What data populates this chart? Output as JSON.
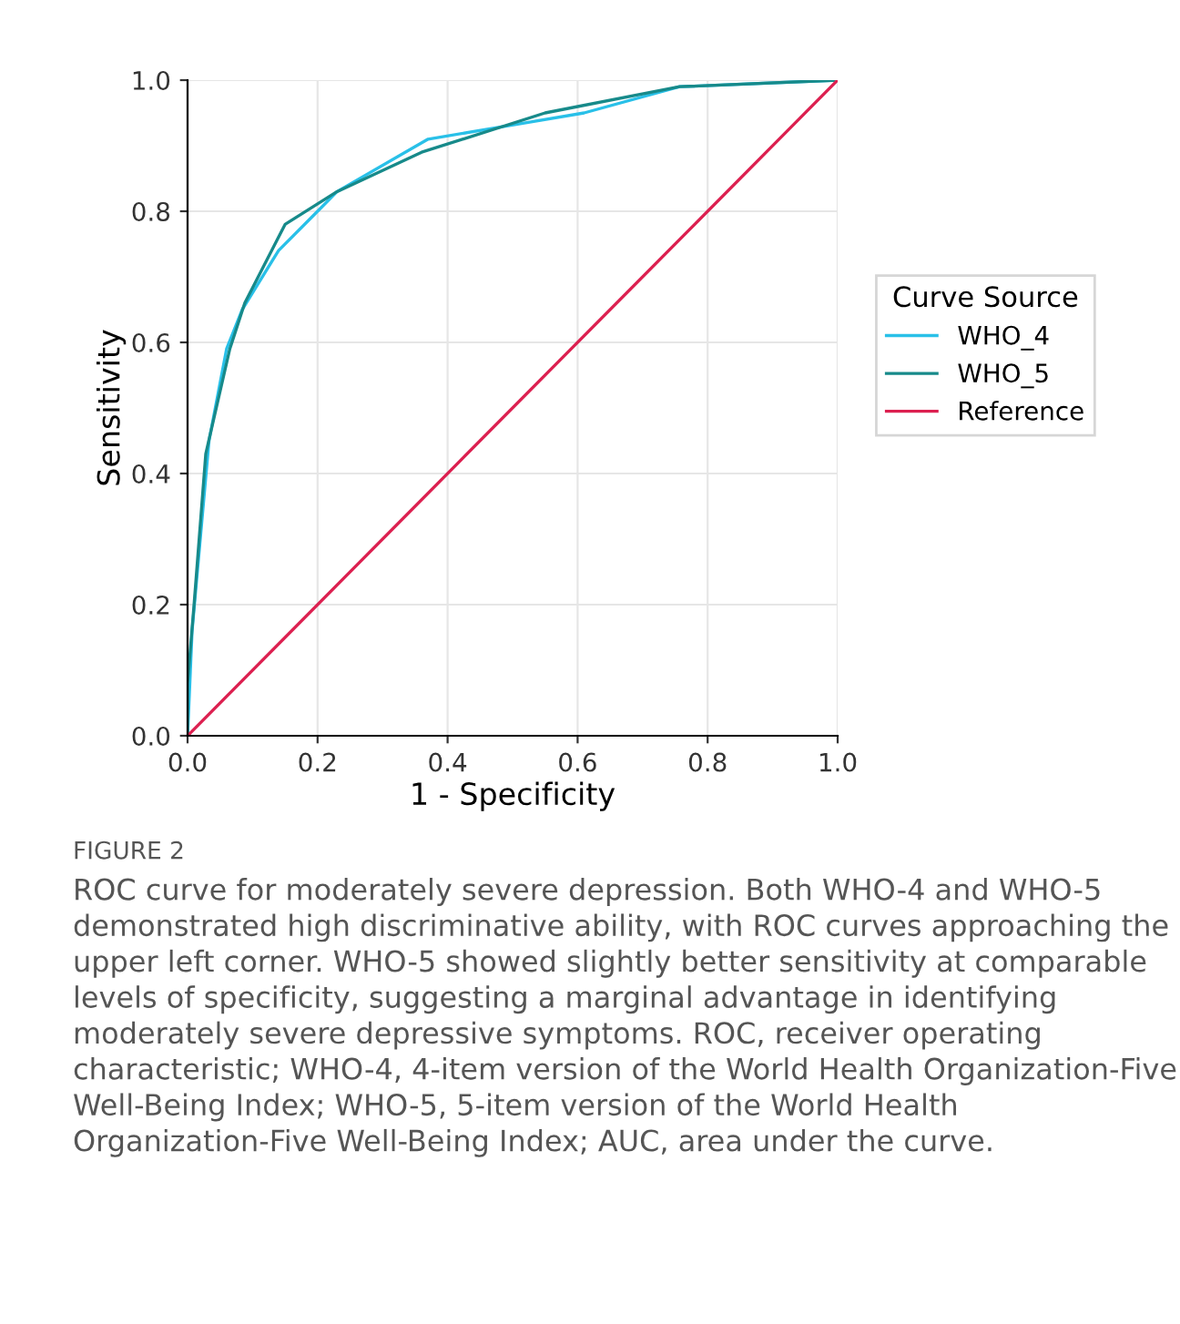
{
  "chart_data": {
    "type": "line",
    "xlabel": "1 - Specificity",
    "ylabel": "Sensitivity",
    "legend_title": "Curve Source",
    "legend": "right",
    "xlim": [
      0,
      1
    ],
    "ylim": [
      0,
      1
    ],
    "xticks": [
      {
        "value": 0,
        "label": "0.0"
      },
      0.2,
      0.4,
      0.6,
      0.8,
      {
        "value": 1,
        "label": "1.0"
      }
    ],
    "yticks": [
      {
        "value": 0,
        "label": "0.0"
      },
      0.2,
      0.4,
      0.6,
      0.8,
      {
        "value": 1,
        "label": "1.0"
      }
    ],
    "grid": true,
    "line_style": "solid",
    "marker": "none",
    "series": [
      {
        "name": "WHO_4",
        "color": "#29c0e8",
        "x": [
          0,
          0.007,
          0.033,
          0.06,
          0.084,
          0.14,
          0.2,
          0.23,
          0.37,
          0.52,
          0.61,
          0.757,
          1
        ],
        "values": [
          0,
          0.16,
          0.45,
          0.59,
          0.65,
          0.74,
          0.8,
          0.83,
          0.91,
          0.935,
          0.95,
          0.99,
          1
        ]
      },
      {
        "name": "WHO_5",
        "color": "#178a8a",
        "x": [
          0,
          0,
          0.01,
          0.028,
          0.065,
          0.088,
          0.15,
          0.23,
          0.36,
          0.55,
          0.757,
          1
        ],
        "values": [
          0,
          0.08,
          0.2,
          0.43,
          0.59,
          0.66,
          0.78,
          0.83,
          0.89,
          0.95,
          0.99,
          1
        ]
      },
      {
        "name": "Reference",
        "color": "#dc2050",
        "x": [
          0,
          1
        ],
        "values": [
          0,
          1
        ]
      }
    ],
    "annotations": [
      "FIGURE 2",
      "ROC curve for moderately severe depression. Both WHO-4 and WHO-5 demonstrated high discriminative ability, with ROC curves approaching the upper left corner. WHO-5 showed slightly better sensitivity at comparable levels of specificity, suggesting a marginal advantage in identifying moderately severe depressive symptoms. ROC, receiver operating characteristic; WHO-4, 4-item version of the World Health Organization-Five Well-Being Index; WHO-5, 5-item version of the World Health Organization-Five Well-Being Index; AUC, area under the curve."
    ]
  }
}
